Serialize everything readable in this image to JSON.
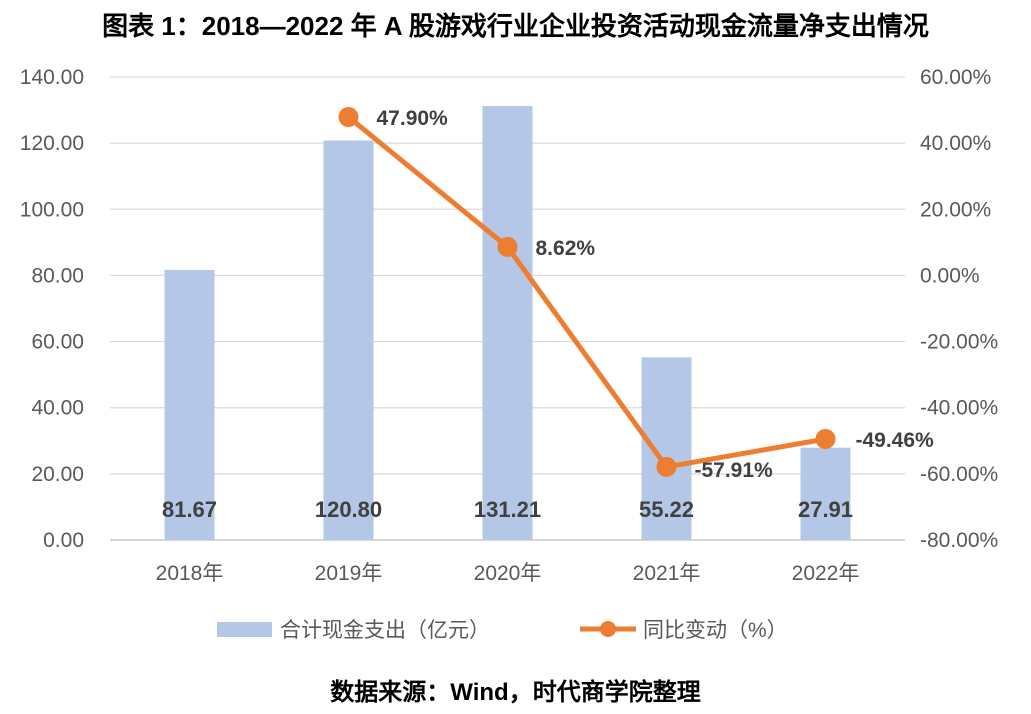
{
  "title": "图表 1：2018—2022 年 A 股游戏行业企业投资活动现金流量净支出情况",
  "source": "数据来源：Wind，时代商学院整理",
  "chart_data": {
    "type": "bar",
    "categories": [
      "2018年",
      "2019年",
      "2020年",
      "2021年",
      "2022年"
    ],
    "bar_series": {
      "name": "合计现金支出（亿元）",
      "values": [
        81.67,
        120.8,
        131.21,
        55.22,
        27.91
      ],
      "labels": [
        "81.67",
        "120.80",
        "131.21",
        "55.22",
        "27.91"
      ],
      "color": "#b4c7e7"
    },
    "line_series": {
      "name": "同比变动（%）",
      "values": [
        null,
        47.9,
        8.62,
        -57.91,
        -49.46
      ],
      "labels": [
        "",
        "47.90%",
        "8.62%",
        "-57.91%",
        "-49.46%"
      ],
      "color": "#ed7d31"
    },
    "y_left": {
      "ylim": [
        0,
        140
      ],
      "ticks": [
        "0.00",
        "20.00",
        "40.00",
        "60.00",
        "80.00",
        "100.00",
        "120.00",
        "140.00"
      ]
    },
    "y_right": {
      "ylim": [
        -80,
        60
      ],
      "ticks": [
        "-80.00%",
        "-60.00%",
        "-40.00%",
        "-20.00%",
        "0.00%",
        "20.00%",
        "40.00%",
        "60.00%"
      ]
    },
    "grid": true,
    "legend_position": "bottom"
  }
}
